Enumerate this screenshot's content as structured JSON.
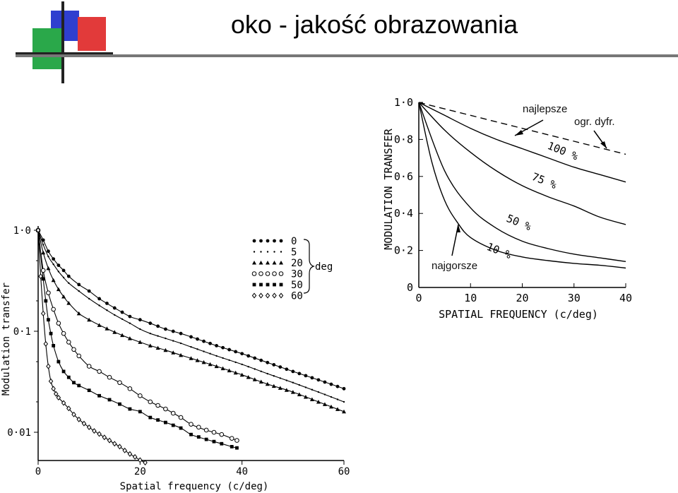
{
  "slide": {
    "title": "oko - jakość obrazowania",
    "logo_colors": [
      "#2f3fcf",
      "#23a340",
      "#e23a3a"
    ]
  },
  "chart_data": [
    {
      "type": "scatter",
      "yscale": "log",
      "xlabel": "Spatial frequency (c/deg)",
      "ylabel": "Modulation transfer",
      "xlim": [
        0,
        60
      ],
      "ylim": [
        0.005,
        1.0
      ],
      "x_ticks": [
        "0",
        "20",
        "40",
        "60"
      ],
      "y_ticks": [
        "1·0",
        "0·1",
        "0·01"
      ],
      "legend_unit": "deg",
      "series": [
        {
          "name": "0",
          "marker": "filled-circle",
          "x": [
            0,
            1,
            2,
            3,
            4,
            5,
            6,
            8,
            10,
            12,
            15,
            18,
            20,
            22,
            25,
            28,
            30,
            35,
            40,
            45,
            50,
            55,
            60
          ],
          "y": [
            1.0,
            0.8,
            0.62,
            0.52,
            0.45,
            0.4,
            0.35,
            0.29,
            0.25,
            0.21,
            0.17,
            0.14,
            0.13,
            0.12,
            0.105,
            0.095,
            0.088,
            0.072,
            0.06,
            0.049,
            0.04,
            0.033,
            0.027
          ]
        },
        {
          "name": "5",
          "marker": "dot",
          "x": [
            0,
            1,
            2,
            3,
            4,
            5,
            6,
            8,
            10,
            12,
            15,
            18,
            20,
            22,
            25,
            28,
            30,
            35,
            40,
            45,
            50,
            55,
            60
          ],
          "y": [
            1.0,
            0.72,
            0.55,
            0.46,
            0.39,
            0.34,
            0.3,
            0.25,
            0.21,
            0.18,
            0.145,
            0.12,
            0.105,
            0.095,
            0.085,
            0.076,
            0.07,
            0.057,
            0.047,
            0.038,
            0.031,
            0.025,
            0.02
          ]
        },
        {
          "name": "20",
          "marker": "filled-triangle",
          "x": [
            0,
            1,
            2,
            3,
            4,
            5,
            6,
            8,
            10,
            12,
            15,
            18,
            20,
            22,
            25,
            28,
            30,
            35,
            40,
            45,
            50,
            55,
            60
          ],
          "y": [
            1.0,
            0.6,
            0.42,
            0.32,
            0.26,
            0.22,
            0.19,
            0.15,
            0.13,
            0.115,
            0.098,
            0.085,
            0.078,
            0.072,
            0.065,
            0.058,
            0.054,
            0.045,
            0.037,
            0.03,
            0.025,
            0.02,
            0.016
          ]
        },
        {
          "name": "30",
          "marker": "open-circle",
          "x": [
            0,
            1,
            2,
            3,
            4,
            5,
            6,
            7,
            8,
            10,
            12,
            14,
            16,
            18,
            20,
            22,
            25,
            28,
            30,
            33,
            36,
            38,
            39
          ],
          "y": [
            1.0,
            0.4,
            0.24,
            0.165,
            0.12,
            0.095,
            0.078,
            0.066,
            0.057,
            0.045,
            0.04,
            0.035,
            0.031,
            0.027,
            0.023,
            0.02,
            0.017,
            0.014,
            0.012,
            0.0105,
            0.0095,
            0.0087,
            0.0083
          ]
        },
        {
          "name": "50",
          "marker": "filled-square",
          "x": [
            0,
            1,
            1.5,
            2,
            2.5,
            3,
            4,
            5,
            6,
            7,
            8,
            10,
            12,
            14,
            16,
            18,
            20,
            22,
            25,
            28,
            30,
            33,
            36,
            38,
            39
          ],
          "y": [
            1.0,
            0.33,
            0.2,
            0.13,
            0.095,
            0.072,
            0.05,
            0.04,
            0.035,
            0.031,
            0.029,
            0.026,
            0.023,
            0.021,
            0.019,
            0.017,
            0.016,
            0.014,
            0.0125,
            0.011,
            0.0095,
            0.0085,
            0.0077,
            0.0072,
            0.007
          ]
        },
        {
          "name": "60",
          "marker": "open-diamond",
          "x": [
            0,
            0.5,
            1,
            1.5,
            2,
            2.5,
            3,
            3.5,
            4,
            5,
            6,
            7,
            8,
            9,
            10,
            11,
            12,
            13,
            14,
            15,
            16,
            17,
            18,
            19,
            20,
            21
          ],
          "y": [
            1.0,
            0.35,
            0.15,
            0.075,
            0.045,
            0.032,
            0.027,
            0.024,
            0.022,
            0.0195,
            0.0172,
            0.015,
            0.0134,
            0.0122,
            0.0112,
            0.0103,
            0.0096,
            0.0089,
            0.0083,
            0.0077,
            0.0072,
            0.0066,
            0.0061,
            0.0057,
            0.0053,
            0.005
          ]
        }
      ]
    },
    {
      "type": "line",
      "xlabel": "SPATIAL FREQUENCY (c/deg)",
      "ylabel": "MODULATION TRANSFER",
      "xlim": [
        0,
        40
      ],
      "ylim": [
        0,
        1.0
      ],
      "x_ticks": [
        "0",
        "10",
        "20",
        "30",
        "40"
      ],
      "y_ticks": [
        "0",
        "0·2",
        "0·4",
        "0·6",
        "0·8",
        "1·0"
      ],
      "series": [
        {
          "name": "100 %",
          "x": [
            0,
            5,
            10,
            15,
            20,
            25,
            30,
            35,
            40
          ],
          "y": [
            1.0,
            0.93,
            0.86,
            0.8,
            0.75,
            0.7,
            0.65,
            0.61,
            0.57
          ]
        },
        {
          "name": "75 %",
          "x": [
            0,
            5,
            10,
            15,
            20,
            25,
            30,
            35,
            40
          ],
          "y": [
            1.0,
            0.85,
            0.73,
            0.63,
            0.55,
            0.49,
            0.44,
            0.38,
            0.34
          ]
        },
        {
          "name": "50 %",
          "x": [
            0,
            5,
            10,
            15,
            20,
            25,
            30,
            35,
            40
          ],
          "y": [
            1.0,
            0.63,
            0.43,
            0.32,
            0.25,
            0.21,
            0.18,
            0.16,
            0.14
          ]
        },
        {
          "name": "10 %",
          "x": [
            0,
            2.5,
            5,
            7.5,
            10,
            15,
            20,
            25,
            30,
            35,
            40
          ],
          "y": [
            1.0,
            0.68,
            0.47,
            0.35,
            0.27,
            0.2,
            0.165,
            0.145,
            0.13,
            0.12,
            0.105
          ]
        },
        {
          "name": "ogr. dyfr.",
          "style": "dashed",
          "x": [
            0,
            10,
            20,
            30,
            40
          ],
          "y": [
            1.0,
            0.93,
            0.86,
            0.79,
            0.72
          ]
        }
      ],
      "annotations": {
        "best": "najlepsze",
        "diffraction": "ogr. dyfr.",
        "worst": "najgorsze"
      }
    }
  ]
}
